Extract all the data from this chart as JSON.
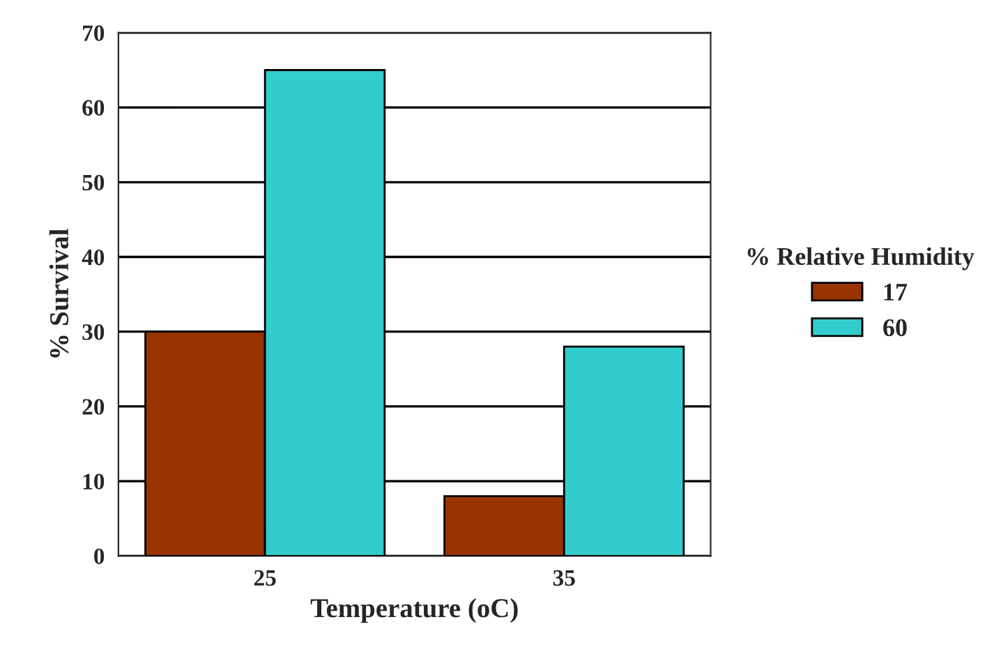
{
  "chart_data": {
    "type": "bar",
    "xlabel": "Temperature (oC)",
    "ylabel": "% Survival",
    "legend_title": "% Relative Humidity",
    "categories": [
      "25",
      "35"
    ],
    "series": [
      {
        "name": "17",
        "color": "#993300",
        "values": [
          30,
          8
        ]
      },
      {
        "name": "60",
        "color": "#33cccc",
        "values": [
          65,
          28
        ]
      }
    ],
    "ylim": [
      0,
      70
    ],
    "yticks": [
      0,
      10,
      20,
      30,
      40,
      50,
      60,
      70
    ],
    "grid": "y",
    "legend": "right"
  }
}
